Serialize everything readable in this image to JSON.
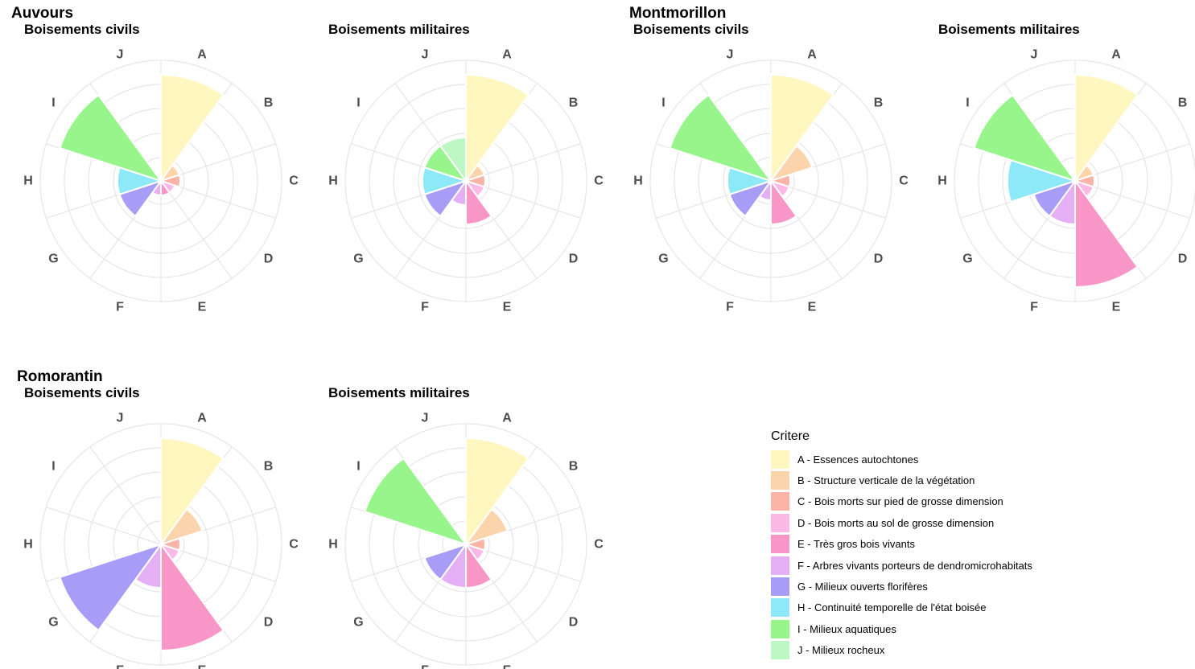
{
  "chart_data": {
    "type": "polar-bar",
    "criteria": [
      "A",
      "B",
      "C",
      "D",
      "E",
      "F",
      "G",
      "H",
      "I",
      "J"
    ],
    "colors": [
      "#FFF6C0",
      "#FCD4AC",
      "#FAB3A5",
      "#FBB9E6",
      "#F896C8",
      "#E5AFF5",
      "#A89DF6",
      "#8DE8F8",
      "#98F58C",
      "#BCF7C4"
    ],
    "radial_max": 5,
    "legend": {
      "title": "Critere",
      "placement": "bottom-right",
      "items": [
        "A - Essences autochtones",
        "B - Structure verticale de la végétation",
        "C - Bois morts sur pied de grosse dimension",
        "D - Bois morts au sol de grosse dimension",
        "E - Très gros bois vivants",
        "F - Arbres vivants porteurs de dendromicrohabitats",
        "G - Milieux ouverts florifères",
        "H - Continuité temporelle de l'état boisée",
        "I - Milieux aquatiques",
        "J - Milieux rocheux"
      ]
    },
    "sites": [
      {
        "name": "Auvours",
        "panels": [
          {
            "title": "Boisements civils",
            "values": [
              4.4,
              0.8,
              0.8,
              0.6,
              0.6,
              0.6,
              1.8,
              1.8,
              4.4,
              0
            ]
          },
          {
            "title": "Boisements militaires",
            "values": [
              4.4,
              0.8,
              0.8,
              0.8,
              1.8,
              1.0,
              1.8,
              1.8,
              1.8,
              1.8
            ]
          }
        ]
      },
      {
        "name": "Montmorillon",
        "panels": [
          {
            "title": "Boisements civils",
            "values": [
              4.4,
              1.8,
              0.8,
              0.8,
              1.8,
              0.8,
              1.8,
              1.8,
              4.4,
              0
            ]
          },
          {
            "title": "Boisements militaires",
            "values": [
              4.4,
              0.8,
              0.8,
              0.8,
              4.4,
              1.8,
              1.8,
              2.8,
              4.4,
              0
            ]
          }
        ]
      },
      {
        "name": "Romorantin",
        "panels": [
          {
            "title": "Boisements civils",
            "values": [
              4.4,
              1.8,
              0.8,
              0.8,
              4.4,
              1.8,
              4.4,
              0,
              0,
              0
            ]
          },
          {
            "title": "Boisements militaires",
            "values": [
              4.4,
              1.8,
              0.8,
              0.8,
              1.8,
              1.8,
              1.8,
              0,
              4.4,
              0
            ]
          }
        ]
      }
    ]
  }
}
